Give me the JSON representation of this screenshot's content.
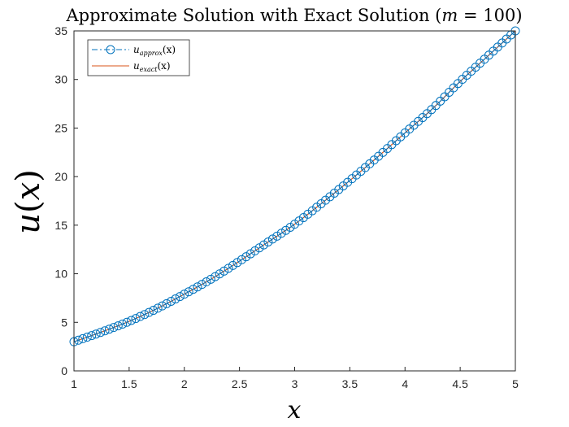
{
  "chart_data": {
    "type": "line",
    "title": "Approximate Solution with Exact Solution (m = 100)",
    "title_parts": {
      "prefix": "Approximate Solution with Exact Solution (",
      "var": "m",
      "rest": " = 100)"
    },
    "xlabel": "x",
    "ylabel": "u(x)",
    "ylabel_parts": {
      "fn": "u",
      "open": "(",
      "arg": "x",
      "close": ")"
    },
    "xlim": [
      1,
      5
    ],
    "ylim": [
      0,
      35
    ],
    "xticks": [
      1,
      1.5,
      2,
      2.5,
      3,
      3.5,
      4,
      4.5,
      5
    ],
    "yticks": [
      0,
      5,
      10,
      15,
      20,
      25,
      30,
      35
    ],
    "legend_placement": "top-left",
    "grid": false,
    "colors": {
      "approx": "#0072bd",
      "exact": "#d95319",
      "axes": "#262626"
    },
    "series": [
      {
        "name": "u_approx(x)",
        "legend": {
          "base": "u",
          "sub": "approx",
          "arg": "(x)"
        },
        "style": "dash-dot line with circle markers",
        "n_points": 101,
        "x": [
          1,
          1.25,
          1.5,
          1.75,
          2,
          2.25,
          2.5,
          2.75,
          3,
          3.25,
          3.5,
          3.75,
          4,
          4.25,
          4.5,
          4.75,
          5
        ],
        "values": [
          3.0,
          4.0,
          5.1,
          6.4,
          7.9,
          9.5,
          11.3,
          13.2,
          15.1,
          17.3,
          19.6,
          22.0,
          24.5,
          27.0,
          29.8,
          32.4,
          35.0
        ]
      },
      {
        "name": "u_exact(x)",
        "legend": {
          "base": "u",
          "sub": "exact",
          "arg": "(x)"
        },
        "style": "solid line",
        "x": [
          1,
          1.25,
          1.5,
          1.75,
          2,
          2.25,
          2.5,
          2.75,
          3,
          3.25,
          3.5,
          3.75,
          4,
          4.25,
          4.5,
          4.75,
          5
        ],
        "values": [
          3.0,
          4.0,
          5.1,
          6.4,
          7.9,
          9.5,
          11.3,
          13.2,
          15.1,
          17.3,
          19.6,
          22.0,
          24.5,
          27.0,
          29.8,
          32.4,
          35.0
        ]
      }
    ]
  }
}
